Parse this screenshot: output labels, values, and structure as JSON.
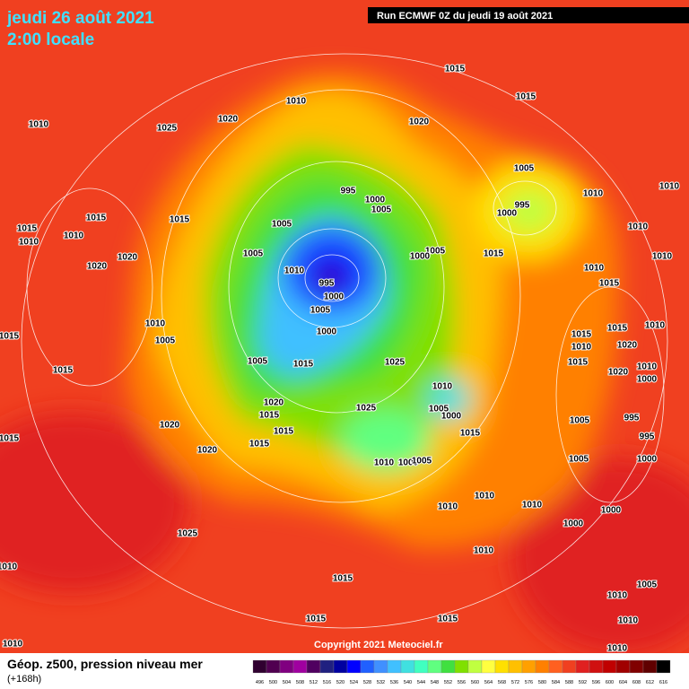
{
  "header": {
    "date": "jeudi 26 août 2021",
    "time": "2:00 locale",
    "run": "Run ECMWF 0Z du jeudi 19 août 2021"
  },
  "copyright": "Copyright 2021 Meteociel.fr",
  "footer": {
    "title": "Géop. z500, pression niveau mer",
    "lead": "(+168h)"
  },
  "legend": {
    "values": [
      496,
      500,
      504,
      508,
      512,
      516,
      520,
      524,
      528,
      532,
      536,
      540,
      544,
      548,
      552,
      556,
      560,
      564,
      568,
      572,
      576,
      580,
      584,
      588,
      592,
      596,
      600,
      604,
      608,
      612,
      616
    ],
    "colors": [
      "#300030",
      "#500050",
      "#800080",
      "#a000a0",
      "#500060",
      "#202080",
      "#0000a0",
      "#0000ff",
      "#2060ff",
      "#4090ff",
      "#40c0ff",
      "#40e0e0",
      "#40ffc0",
      "#60ff80",
      "#40e040",
      "#80e000",
      "#c0ff40",
      "#ffff40",
      "#ffe000",
      "#ffc000",
      "#ffa000",
      "#ff8000",
      "#ff6020",
      "#f04020",
      "#e02020",
      "#d01010",
      "#c00000",
      "#a00000",
      "#800000",
      "#600000",
      "#000000"
    ]
  },
  "isobar_labels": [
    1010,
    1015,
    1015,
    1020,
    1025,
    1020,
    1010,
    1005,
    1010,
    1010,
    995,
    1000,
    1005,
    995,
    1000,
    1015,
    1015,
    1015,
    1010,
    1010,
    1005,
    1005,
    1005,
    1000,
    1015,
    1010,
    1010,
    1020,
    1020,
    1010,
    995,
    1000,
    1005,
    1010,
    1015,
    1010,
    1005,
    1000,
    1015,
    1015,
    1010,
    1015,
    1010,
    1020,
    1015,
    1010,
    1020,
    1005,
    1015,
    1025,
    1015,
    1000,
    1010,
    1020,
    1015,
    1025,
    1005,
    1000,
    1005,
    995,
    1020,
    1015,
    1015,
    1015,
    995,
    1020,
    1015,
    1010,
    1000,
    1005,
    1005,
    1000,
    1010,
    1010,
    1010,
    1000,
    1000,
    1025,
    1010,
    1010,
    1015,
    1005,
    1010,
    1015,
    1015,
    1010,
    1010,
    1010
  ]
}
